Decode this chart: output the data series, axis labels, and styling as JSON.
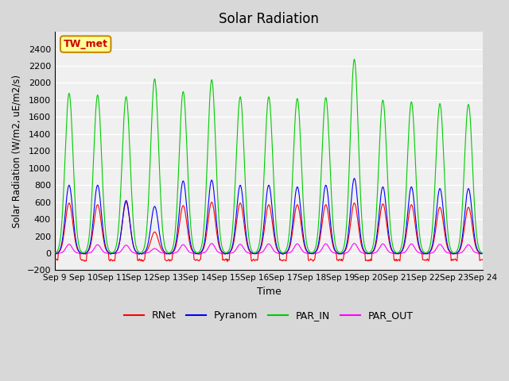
{
  "title": "Solar Radiation",
  "ylabel": "Solar Radiation (W/m2, uE/m2/s)",
  "xlabel": "Time",
  "station_label": "TW_met",
  "ylim": [
    -200,
    2600
  ],
  "yticks": [
    -200,
    0,
    200,
    400,
    600,
    800,
    1000,
    1200,
    1400,
    1600,
    1800,
    2000,
    2200,
    2400
  ],
  "x_tick_labels": [
    "Sep 9",
    "Sep 10",
    "Sep 11",
    "Sep 12",
    "Sep 13",
    "Sep 14",
    "Sep 15",
    "Sep 16",
    "Sep 17",
    "Sep 18",
    "Sep 19",
    "Sep 20",
    "Sep 21",
    "Sep 22",
    "Sep 23",
    "Sep 24"
  ],
  "num_days": 15,
  "colors": {
    "RNet": "#ff0000",
    "Pyranom": "#0000ff",
    "PAR_IN": "#00cc00",
    "PAR_OUT": "#ff00ff"
  },
  "background_color": "#d8d8d8",
  "plot_bg_color": "#f0f0f0",
  "grid_color": "#ffffff",
  "par_in_peaks": [
    1880,
    1860,
    1840,
    2050,
    1900,
    2040,
    1840,
    1840,
    1820,
    1830,
    2280,
    1800,
    1780,
    1760,
    1750
  ],
  "pyranom_peaks": [
    800,
    800,
    620,
    550,
    850,
    860,
    800,
    800,
    780,
    800,
    880,
    780,
    780,
    760,
    760
  ],
  "rnet_peaks": [
    590,
    570,
    600,
    250,
    560,
    600,
    590,
    570,
    570,
    570,
    590,
    580,
    570,
    540,
    540
  ],
  "par_out_peaks": [
    105,
    100,
    95,
    55,
    100,
    115,
    105,
    110,
    110,
    110,
    115,
    110,
    110,
    105,
    100
  ]
}
